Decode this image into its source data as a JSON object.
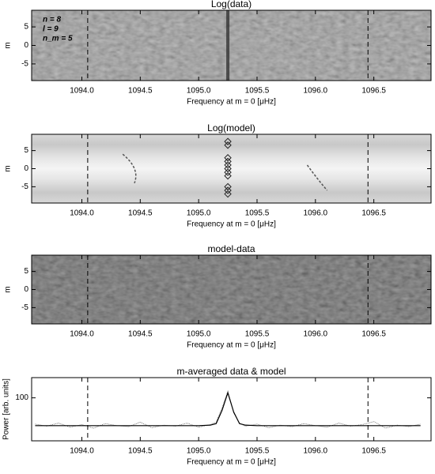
{
  "chart_data": [
    {
      "type": "heatmap",
      "title": "Log(data)",
      "xlabel": "Frequency at m = 0 [μHz]",
      "ylabel": "m",
      "xlim": [
        1093.57,
        1096.99
      ],
      "ylim": [
        -9.5,
        9.5
      ],
      "xticks": [
        {
          "value": 1094,
          "label": "1094.0"
        },
        1094.5,
        {
          "value": 1095,
          "label": "1095.0"
        },
        1095.5,
        {
          "value": 1096,
          "label": "1096.0"
        },
        1096.5
      ],
      "yticks": [
        -5,
        0,
        5
      ],
      "dashed_lines": [
        1094.05,
        1096.45
      ],
      "ridge_x": 1095.25,
      "shade": "#8a8a8a",
      "annotations": [
        "n = 8",
        "l = 9",
        "n_m = 5"
      ]
    },
    {
      "type": "heatmap",
      "title": "Log(model)",
      "xlabel": "Frequency at m = 0 [μHz]",
      "ylabel": "m",
      "xlim": [
        1093.57,
        1096.99
      ],
      "ylim": [
        -9.5,
        9.5
      ],
      "xticks": [
        {
          "value": 1094,
          "label": "1094.0"
        },
        1094.5,
        {
          "value": 1095,
          "label": "1095.0"
        },
        1095.5,
        {
          "value": 1096,
          "label": "1096.0"
        },
        1096.5
      ],
      "yticks": [
        -5,
        0,
        5
      ],
      "dashed_lines": [
        1094.05,
        1096.45
      ],
      "shade": "model",
      "markers": {
        "x": [
          1095.25,
          1095.25,
          1095.25,
          1095.25,
          1095.25,
          1095.25,
          1095.25,
          1095.25,
          1095.25,
          1095.25,
          1095.25
        ],
        "y": [
          7.5,
          6.5,
          3,
          2,
          1,
          0,
          -1,
          -2,
          -5,
          -6,
          -7
        ]
      }
    },
    {
      "type": "heatmap",
      "title": "model-data",
      "xlabel": "Frequency at m = 0 [μHz]",
      "ylabel": "m",
      "xlim": [
        1093.57,
        1096.99
      ],
      "ylim": [
        -9.5,
        9.5
      ],
      "xticks": [
        {
          "value": 1094,
          "label": "1094.0"
        },
        1094.5,
        {
          "value": 1095,
          "label": "1095.0"
        },
        1095.5,
        {
          "value": 1096,
          "label": "1096.0"
        },
        1096.5
      ],
      "yticks": [
        -5,
        0,
        5
      ],
      "dashed_lines": [
        1094.05,
        1096.45
      ],
      "shade": "#3a3a3a"
    },
    {
      "type": "line",
      "title": "m-averaged data & model",
      "xlabel": "Frequency at m = 0 [μHz]",
      "ylabel": "Power [arb. units]",
      "xlim": [
        1093.57,
        1096.99
      ],
      "ylim": [
        15,
        140
      ],
      "xticks": [
        {
          "value": 1094,
          "label": "1094.0"
        },
        1094.5,
        {
          "value": 1095,
          "label": "1095.0"
        },
        1095.5,
        {
          "value": 1096,
          "label": "1096.0"
        },
        1096.5
      ],
      "yticks": [
        100
      ],
      "dashed_lines": [
        1094.05,
        1096.45
      ],
      "x": [
        1093.6,
        1093.7,
        1093.8,
        1093.9,
        1094.0,
        1094.1,
        1094.2,
        1094.3,
        1094.4,
        1094.5,
        1094.6,
        1094.7,
        1094.8,
        1094.9,
        1095.0,
        1095.1,
        1095.15,
        1095.2,
        1095.25,
        1095.3,
        1095.35,
        1095.4,
        1095.5,
        1095.6,
        1095.7,
        1095.8,
        1095.9,
        1096.0,
        1096.1,
        1096.2,
        1096.3,
        1096.4,
        1096.5,
        1096.6,
        1096.7,
        1096.8,
        1096.9
      ],
      "series": [
        {
          "color": "#555555",
          "values": [
            48,
            44,
            50,
            42,
            47,
            40,
            49,
            45,
            43,
            52,
            41,
            46,
            44,
            50,
            42,
            47,
            52,
            80,
            113,
            70,
            50,
            44,
            48,
            41,
            46,
            43,
            49,
            45,
            42,
            50,
            44,
            47,
            53,
            40,
            46,
            43,
            48
          ]
        },
        {
          "color": "#000000",
          "values": [
            45,
            45,
            45,
            45,
            45,
            45,
            45,
            45,
            45,
            45,
            45,
            45,
            45,
            45,
            45,
            46,
            49,
            75,
            110,
            72,
            49,
            46,
            45,
            45,
            45,
            45,
            45,
            45,
            45,
            45,
            45,
            45,
            45,
            45,
            45,
            45,
            45
          ]
        }
      ]
    }
  ]
}
